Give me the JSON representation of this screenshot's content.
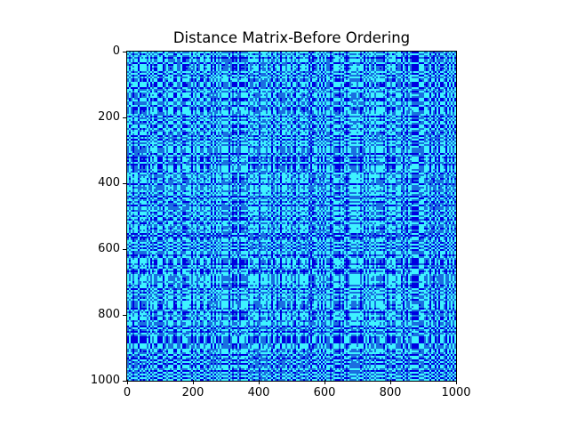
{
  "chart_data": {
    "type": "heatmap",
    "title": "Distance Matrix-Before Ordering",
    "xlabel": "",
    "ylabel": "",
    "xlim": [
      0,
      1000
    ],
    "ylim": [
      1000,
      0
    ],
    "x_ticks": [
      0,
      200,
      400,
      600,
      800,
      1000
    ],
    "y_ticks": [
      0,
      200,
      400,
      600,
      800,
      1000
    ],
    "x_tick_labels": [
      "0",
      "200",
      "400",
      "600",
      "800",
      "1000"
    ],
    "y_tick_labels": [
      "0",
      "200",
      "400",
      "600",
      "800",
      "1000"
    ],
    "matrix_size": 1000,
    "colormap": "jet",
    "colors": {
      "low": "#0000e0",
      "mid": "#1a6fe0",
      "high": "#3ef2ff"
    },
    "grid": false,
    "legend": "none"
  }
}
